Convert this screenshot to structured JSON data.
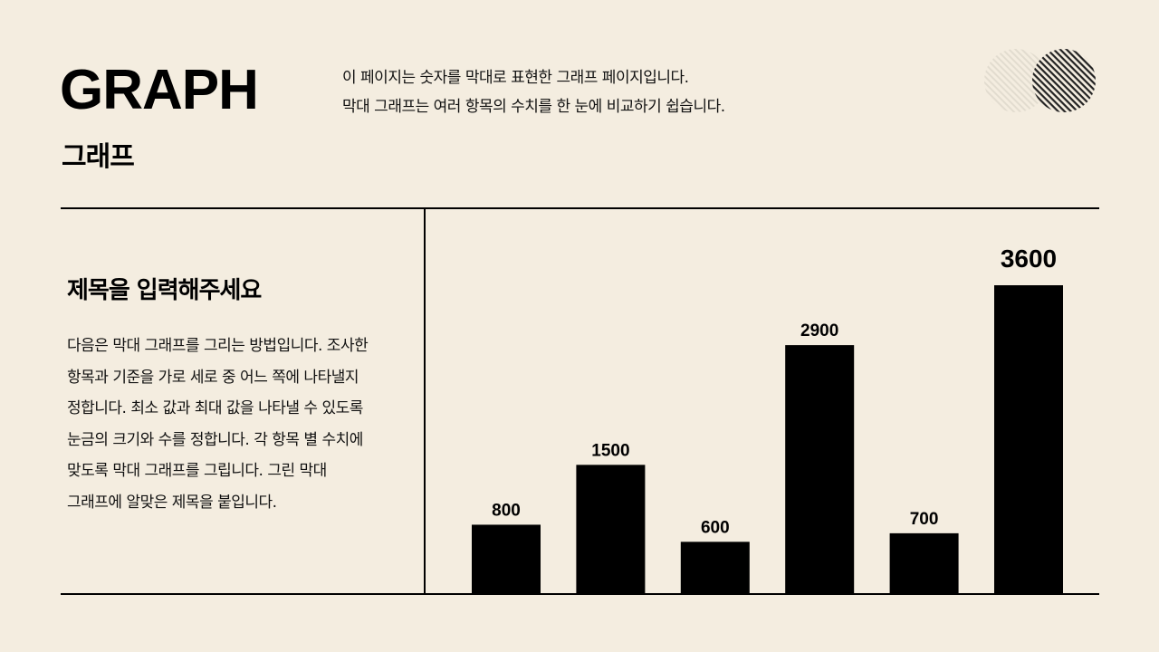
{
  "header": {
    "title_en": "GRAPH",
    "title_ko": "그래프",
    "description": [
      "이 페이지는 숫자를 막대로 표현한 그래프 페이지입니다.",
      "막대 그래프는 여러 항목의 수치를 한 눈에 비교하기 쉽습니다."
    ]
  },
  "left_panel": {
    "heading": "제목을 입력해주세요",
    "body": "다음은 막대 그래프를 그리는 방법입니다. 조사한 항목과 기준을 가로 세로 중 어느 쪽에 나타낼지 정합니다. 최소 값과 최대 값을 나타낼 수 있도록 눈금의 크기와 수를 정합니다. 각 항목 별 수치에 맞도록 막대 그래프를 그립니다. 그린 막대 그래프에 알맞은 제목을 붙입니다."
  },
  "decoration": {
    "icon": "hatched-circles-icon"
  },
  "colors": {
    "background": "#f4ede0",
    "bar": "#000000"
  },
  "chart_data": {
    "type": "bar",
    "values": [
      800,
      1500,
      600,
      2900,
      700,
      3600
    ],
    "data_labels": [
      "800",
      "1500",
      "600",
      "2900",
      "700",
      "3600"
    ],
    "highlight_index": 5,
    "ylim": [
      0,
      3600
    ],
    "grid": false,
    "title": "",
    "xlabel": "",
    "ylabel": ""
  }
}
